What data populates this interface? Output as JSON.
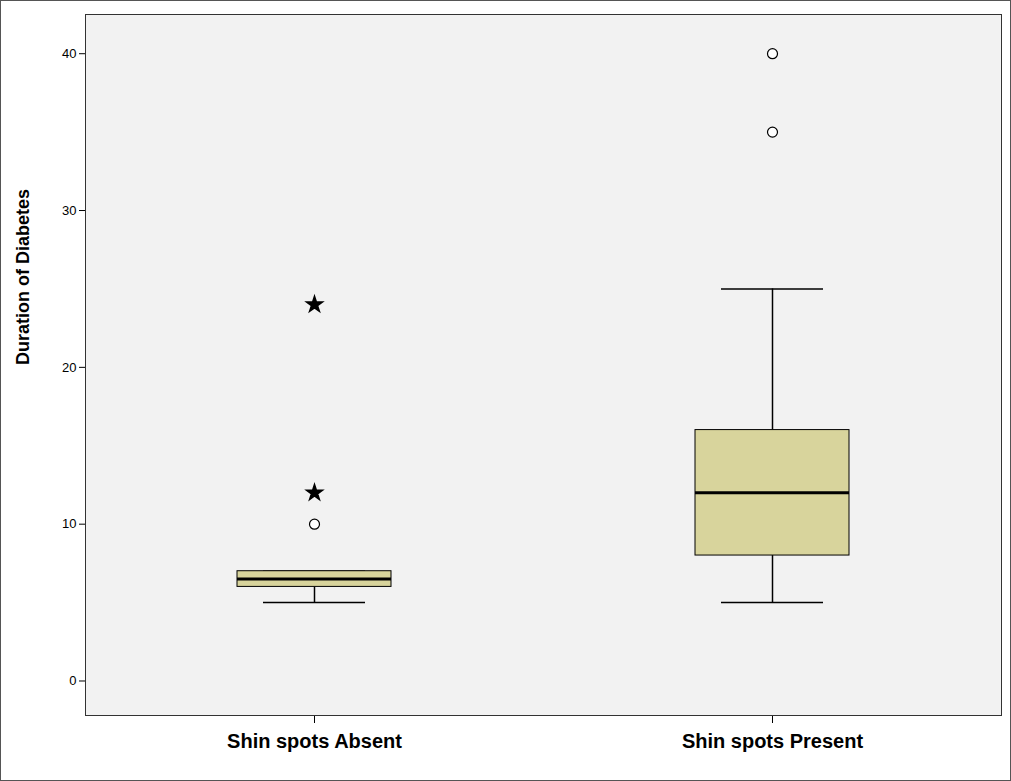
{
  "chart_data": {
    "type": "box",
    "y_label": "Duration of Diabetes",
    "categories": [
      "Shin spots Absent",
      "Shin spots Present"
    ],
    "color": "#d8d49c",
    "whisker_low": [
      5,
      5
    ],
    "q1": [
      6,
      8
    ],
    "median": [
      6.5,
      12
    ],
    "q3": [
      7,
      16
    ],
    "whisker_high": [
      7,
      25
    ],
    "outliers": {
      "marker": "circle",
      "values": [
        [
          10
        ],
        [
          35,
          40
        ]
      ]
    },
    "extremes": {
      "marker": "star",
      "values": [
        [
          24,
          12
        ],
        []
      ]
    },
    "ylim": [
      -2.2,
      42.5
    ],
    "yticks": [
      0,
      10,
      20,
      30,
      40
    ]
  }
}
